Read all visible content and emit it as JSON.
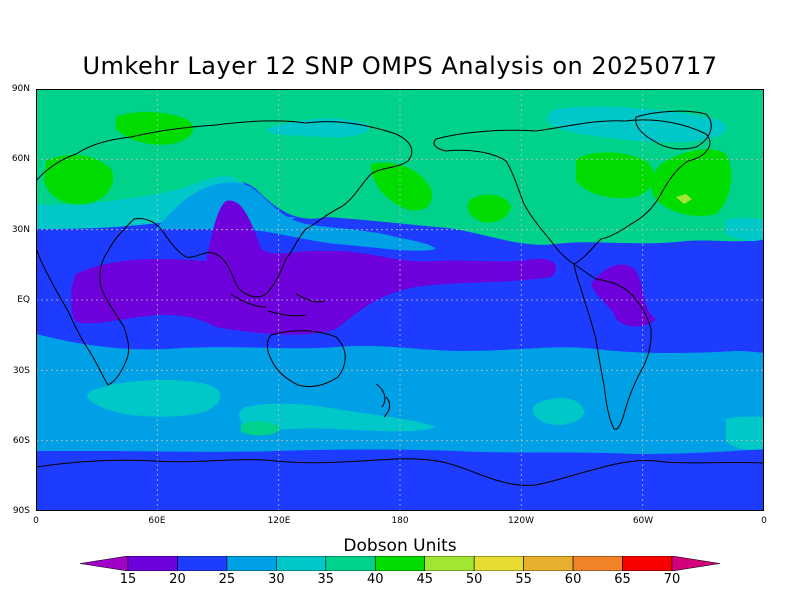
{
  "title": "Umkehr Layer 12 SNP OMPS Analysis on 20250717",
  "lat_labels": [
    "90N",
    "60N",
    "30N",
    "EQ",
    "30S",
    "60S",
    "90S"
  ],
  "lon_labels": [
    "0",
    "60E",
    "120E",
    "180",
    "120W",
    "60W",
    "0"
  ],
  "colorbar": {
    "title": "Dobson Units",
    "levels": [
      "15",
      "20",
      "25",
      "30",
      "35",
      "40",
      "45",
      "50",
      "55",
      "60",
      "65",
      "70"
    ],
    "colors": [
      "#a000c8",
      "#6e00dc",
      "#1e3cff",
      "#00a0e6",
      "#00c8c8",
      "#00d28c",
      "#00dc00",
      "#a0e632",
      "#e6dc32",
      "#e6af2d",
      "#f08228",
      "#fa0000",
      "#d2007a"
    ]
  },
  "map_colors": {
    "band_20_25": "#1e3cff",
    "band_15_20": "#6e00dc",
    "band_25_30": "#00a0e6",
    "band_30_35": "#00c8c8",
    "band_35_40": "#00d28c",
    "band_40_45": "#00dc00",
    "band_45_50": "#a0e632",
    "coastline": "#000000",
    "grid": "#bbbbbb"
  }
}
